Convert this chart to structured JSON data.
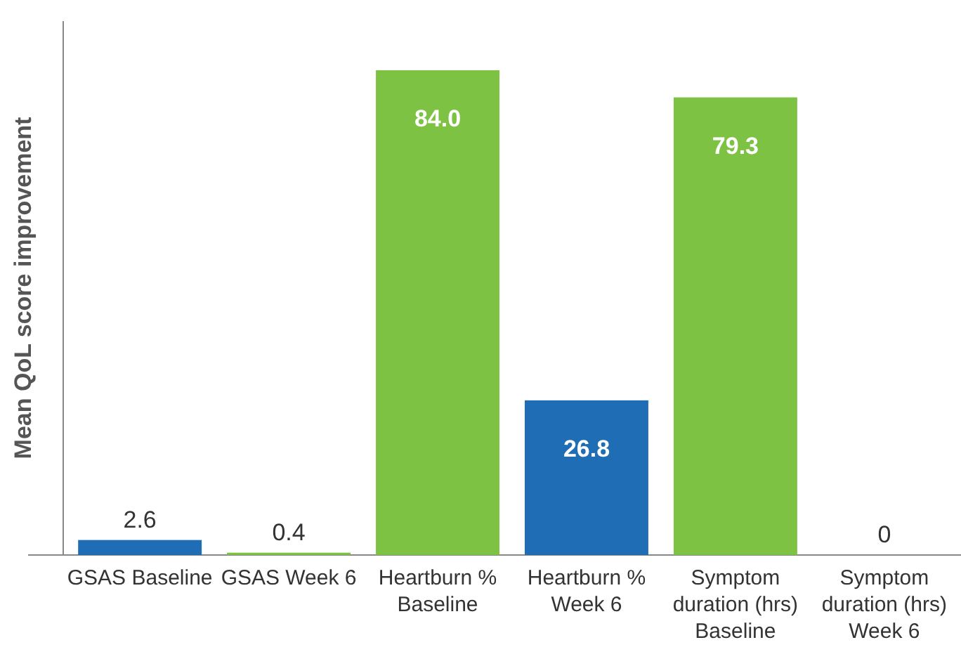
{
  "chart_data": {
    "type": "bar",
    "ylabel": "Mean QoL score improvement",
    "categories": [
      "GSAS Baseline",
      "GSAS Week 6",
      "Heartburn % Baseline",
      "Heartburn % Week 6",
      "Symptom duration (hrs) Baseline",
      "Symptom duration (hrs) Week 6"
    ],
    "values": [
      2.6,
      0.4,
      84.0,
      26.8,
      79.3,
      0
    ],
    "colors": [
      "#1f6db5",
      "#7dc242",
      "#7dc242",
      "#1f6db5",
      "#7dc242",
      "#7dc242"
    ],
    "value_labels": [
      "2.6",
      "0.4",
      "84.0",
      "26.8",
      "79.3",
      "0"
    ]
  }
}
